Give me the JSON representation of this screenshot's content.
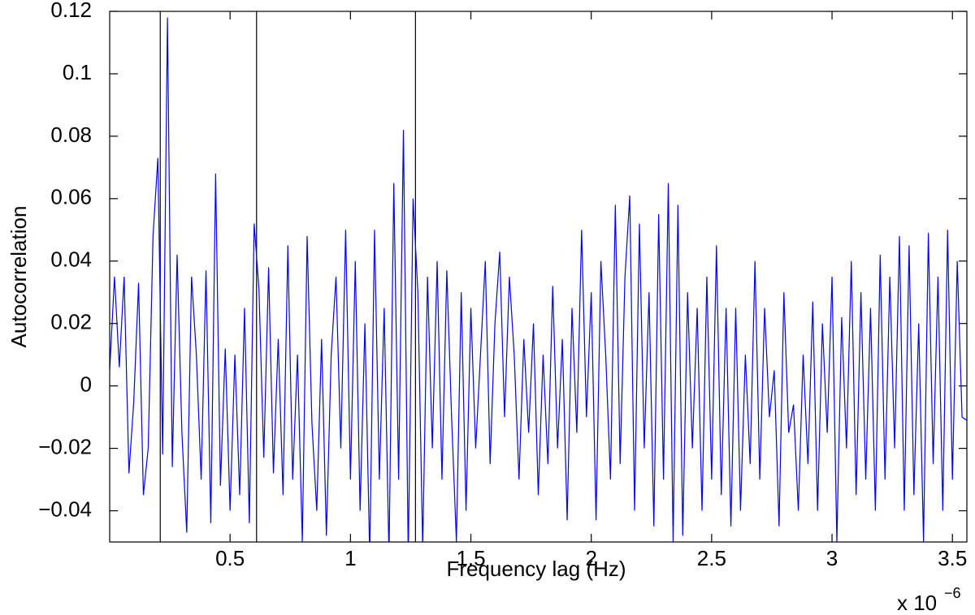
{
  "chart_data": {
    "type": "line",
    "xlabel": "Frequency lag  (Hz)",
    "ylabel": "Autocorrelation",
    "x_multiplier": "x 10",
    "x_multiplier_exponent": "−6",
    "xlim": [
      0,
      3.56
    ],
    "ylim": [
      -0.05,
      0.12
    ],
    "xticks": [
      0.5,
      1,
      1.5,
      2,
      2.5,
      3,
      3.5
    ],
    "yticks": [
      {
        "value": -0.04,
        "label": "−0.04"
      },
      {
        "value": -0.02,
        "label": "−0.02"
      },
      0,
      0.02,
      0.04,
      0.06,
      0.08,
      0.1,
      0.12
    ],
    "grid": false,
    "vertical_lines": [
      0.21,
      0.61,
      1.27
    ],
    "vertical_line_color": "#000000",
    "x": [
      0,
      0.02,
      0.04,
      0.06,
      0.08,
      0.1,
      0.12,
      0.14,
      0.16,
      0.18,
      0.2,
      0.22,
      0.24,
      0.26,
      0.28,
      0.3,
      0.32,
      0.34,
      0.36,
      0.38,
      0.4,
      0.42,
      0.44,
      0.46,
      0.48,
      0.5,
      0.52,
      0.54,
      0.56,
      0.58,
      0.6,
      0.62,
      0.64,
      0.66,
      0.68,
      0.7,
      0.72,
      0.74,
      0.76,
      0.78,
      0.8,
      0.82,
      0.84,
      0.86,
      0.88,
      0.9,
      0.92,
      0.94,
      0.96,
      0.98,
      1,
      1.02,
      1.04,
      1.06,
      1.08,
      1.1,
      1.12,
      1.14,
      1.16,
      1.18,
      1.2,
      1.22,
      1.24,
      1.26,
      1.28,
      1.3,
      1.32,
      1.34,
      1.36,
      1.38,
      1.4,
      1.42,
      1.44,
      1.46,
      1.48,
      1.5,
      1.52,
      1.54,
      1.56,
      1.58,
      1.6,
      1.62,
      1.64,
      1.66,
      1.68,
      1.7,
      1.72,
      1.74,
      1.76,
      1.78,
      1.8,
      1.82,
      1.84,
      1.86,
      1.88,
      1.9,
      1.92,
      1.94,
      1.96,
      1.98,
      2,
      2.02,
      2.04,
      2.06,
      2.08,
      2.1,
      2.12,
      2.14,
      2.16,
      2.18,
      2.2,
      2.22,
      2.24,
      2.26,
      2.28,
      2.3,
      2.32,
      2.34,
      2.36,
      2.38,
      2.4,
      2.42,
      2.44,
      2.46,
      2.48,
      2.5,
      2.52,
      2.54,
      2.56,
      2.58,
      2.6,
      2.62,
      2.64,
      2.66,
      2.68,
      2.7,
      2.72,
      2.74,
      2.76,
      2.78,
      2.8,
      2.82,
      2.84,
      2.86,
      2.88,
      2.9,
      2.92,
      2.94,
      2.96,
      2.98,
      3,
      3.02,
      3.04,
      3.06,
      3.08,
      3.1,
      3.12,
      3.14,
      3.16,
      3.18,
      3.2,
      3.22,
      3.24,
      3.26,
      3.28,
      3.3,
      3.32,
      3.34,
      3.36,
      3.38,
      3.4,
      3.42,
      3.44,
      3.46,
      3.48,
      3.5,
      3.52,
      3.54,
      3.56
    ],
    "series": [
      {
        "color": "#0000ff",
        "values": [
          0.005,
          0.035,
          0.006,
          0.035,
          -0.028,
          -0.005,
          0.033,
          -0.035,
          -0.02,
          0.048,
          0.073,
          -0.022,
          0.118,
          -0.026,
          0.042,
          -0.015,
          -0.047,
          0.035,
          0.01,
          -0.03,
          0.037,
          -0.044,
          0.068,
          -0.032,
          0.012,
          -0.04,
          0.01,
          -0.035,
          0.025,
          -0.044,
          0.052,
          0.031,
          -0.023,
          0.038,
          -0.028,
          0.015,
          -0.035,
          0.045,
          -0.03,
          0.01,
          -0.05,
          0.048,
          -0.012,
          -0.04,
          0.015,
          -0.048,
          0.01,
          0.035,
          -0.02,
          0.05,
          -0.03,
          0.04,
          -0.04,
          0.02,
          -0.055,
          0.05,
          -0.03,
          0.025,
          -0.055,
          0.065,
          -0.03,
          0.082,
          -0.055,
          0.06,
          0.03,
          -0.052,
          0.035,
          -0.02,
          0.04,
          -0.03,
          0.037,
          -0.01,
          -0.05,
          0.03,
          -0.04,
          0.025,
          -0.02,
          0.01,
          0.04,
          -0.025,
          0.02,
          0.043,
          -0.01,
          0.035,
          0.01,
          -0.03,
          0.015,
          -0.015,
          0.02,
          -0.035,
          0.01,
          -0.025,
          0.032,
          -0.02,
          0.015,
          -0.043,
          0.025,
          -0.015,
          0.05,
          -0.01,
          0.03,
          -0.043,
          0.04,
          0.01,
          -0.03,
          0.058,
          -0.025,
          0.035,
          0.061,
          -0.04,
          0.052,
          -0.02,
          0.03,
          -0.045,
          0.055,
          -0.03,
          0.065,
          -0.05,
          0.058,
          -0.048,
          0.03,
          -0.02,
          0.025,
          -0.04,
          0.035,
          -0.03,
          0.045,
          -0.035,
          0.025,
          -0.045,
          0.025,
          -0.04,
          0.01,
          -0.025,
          0.04,
          -0.03,
          0.025,
          -0.01,
          0.005,
          -0.045,
          0.03,
          -0.015,
          -0.006,
          -0.04,
          0.01,
          -0.025,
          0.027,
          -0.04,
          0.02,
          -0.015,
          0.035,
          -0.05,
          0.022,
          -0.02,
          0.04,
          -0.035,
          0.03,
          -0.03,
          0.025,
          -0.04,
          0.042,
          -0.03,
          0.035,
          -0.02,
          0.048,
          -0.04,
          0.045,
          -0.035,
          0.02,
          -0.05,
          0.049,
          -0.025,
          0.035,
          -0.04,
          0.05,
          -0.03,
          0.04,
          -0.01,
          -0.011
        ]
      }
    ]
  }
}
